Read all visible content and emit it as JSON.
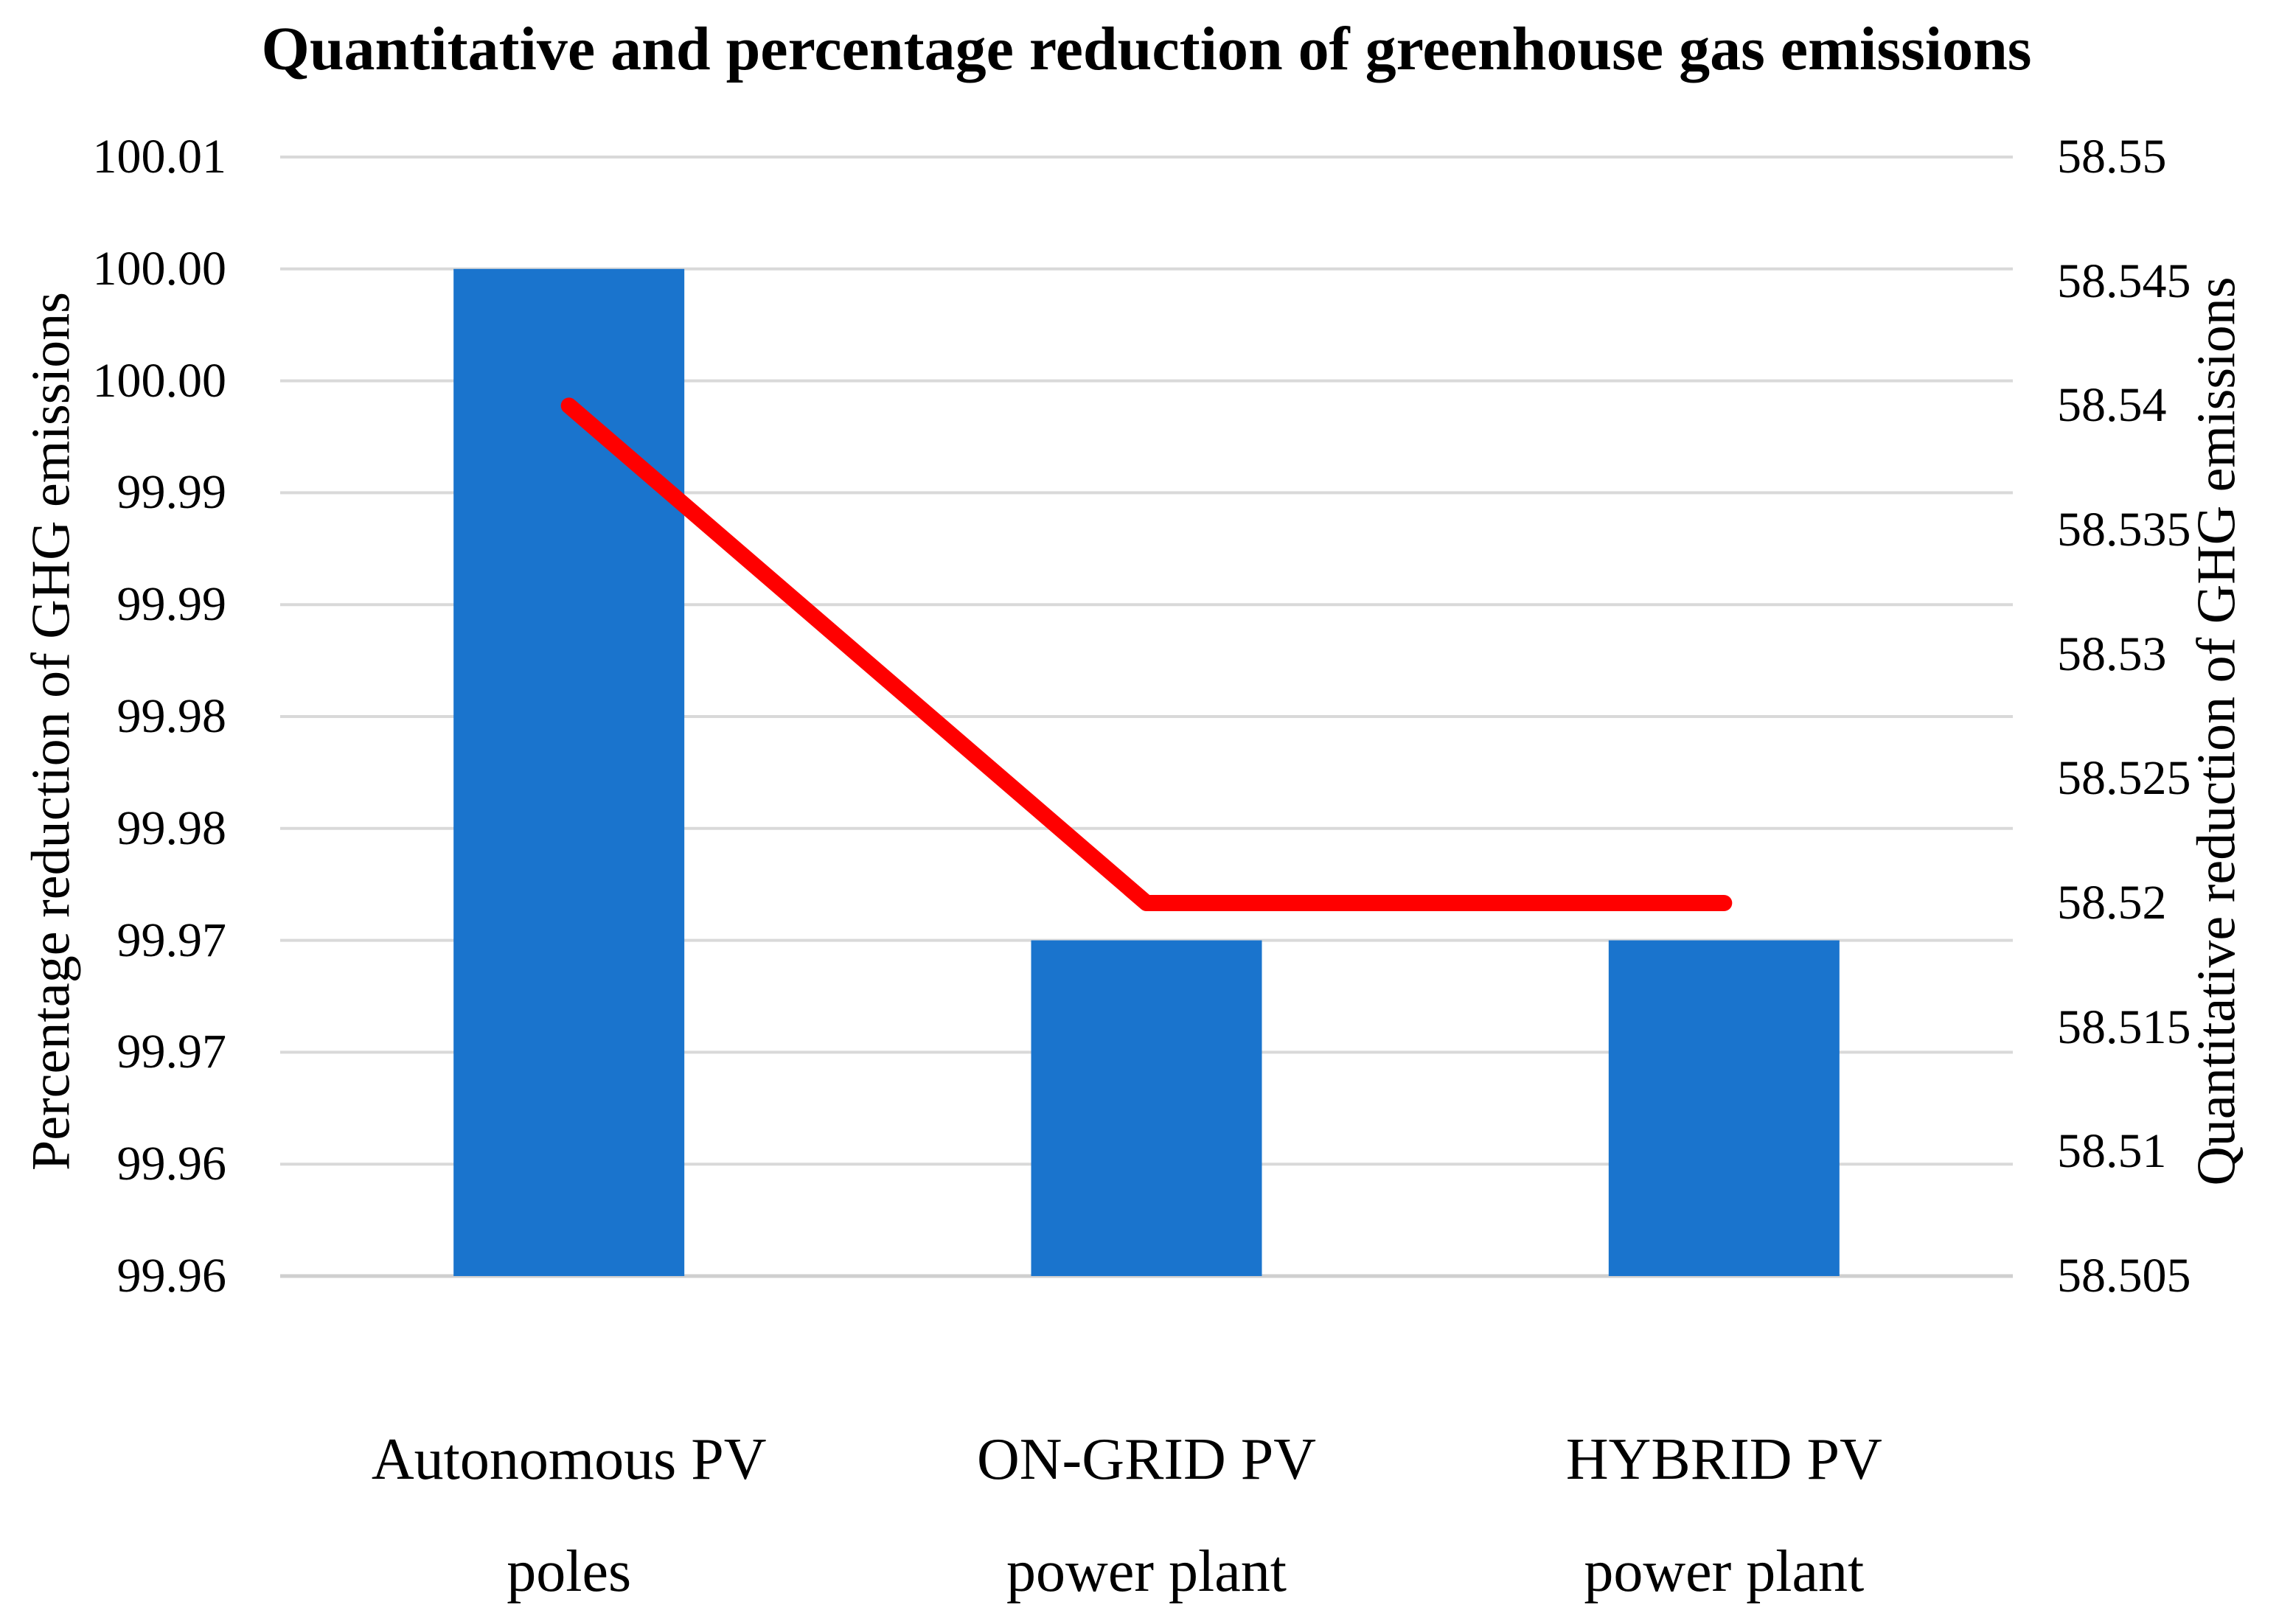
{
  "title": "Quantitative and percentage reduction of greenhouse gas emissions",
  "chart_data": {
    "type": "combo-bar-line",
    "title": "Quantitative and percentage reduction of greenhouse gas emissions",
    "categories": [
      {
        "line1": "Autonomous PV",
        "line2": "poles"
      },
      {
        "line1": "ON-GRID PV",
        "line2": "power plant"
      },
      {
        "line1": "HYBRID PV",
        "line2": "power plant"
      }
    ],
    "series": [
      {
        "name": "Percentage reduction of GHG emissions",
        "type": "bar",
        "axis": "left",
        "values": [
          100.0,
          99.97,
          99.97
        ],
        "color": "#1a74cd"
      },
      {
        "name": "Quantitative reduction of GHG emissions",
        "type": "line",
        "axis": "right",
        "values": [
          58.54,
          58.52,
          58.52
        ],
        "color": "#ff0000"
      }
    ],
    "left_axis": {
      "title": "Percentage reduction of GHG emissions",
      "min": 99.955,
      "max": 100.005,
      "step": 0.005,
      "tick_labels": [
        "100.01",
        "100.00",
        "100.00",
        "99.99",
        "99.99",
        "99.98",
        "99.98",
        "99.97",
        "99.97",
        "99.96",
        "99.96"
      ]
    },
    "right_axis": {
      "title": "Quantitative reduction of GHG emissions",
      "min": 58.505,
      "max": 58.55,
      "step": 0.005,
      "tick_labels": [
        "58.55",
        "58.545",
        "58.54",
        "58.535",
        "58.53",
        "58.525",
        "58.52",
        "58.515",
        "58.51",
        "58.505"
      ]
    },
    "grid": true,
    "legend": false,
    "colors": {
      "bar": "#1a74cd",
      "line": "#ff0000",
      "gridline": "#d9d9d9",
      "axis_line": "#cfcfcf",
      "text": "#000000",
      "background": "#ffffff"
    }
  }
}
